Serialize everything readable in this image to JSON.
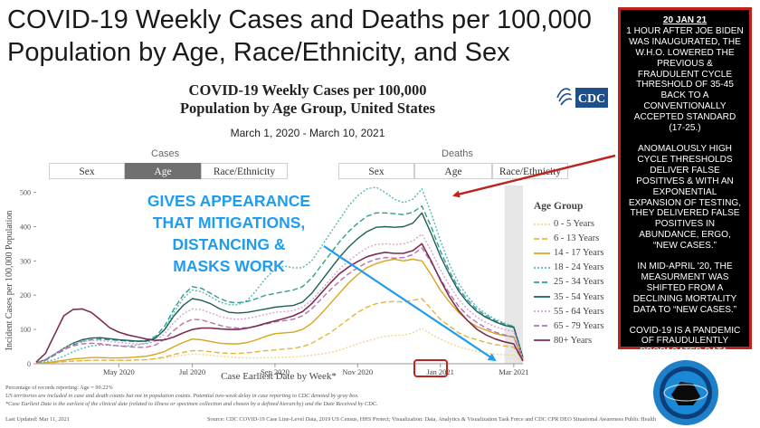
{
  "header": {
    "title_line1": "COVID-19 Weekly Cases and Deaths per 100,000",
    "title_line2": "Population by Age, Race/Ethnicity, and Sex"
  },
  "chart_header": {
    "title_line1": "COVID-19 Weekly Cases per 100,000",
    "title_line2": "Population by Age Group, United States",
    "date_range": "March 1, 2020 - March 10, 2021",
    "logo_text": "CDC"
  },
  "tabs": {
    "cases_label": "Cases",
    "deaths_label": "Deaths",
    "cases": [
      "Sex",
      "Age",
      "Race/Ethnicity"
    ],
    "deaths": [
      "Sex",
      "Age",
      "Race/Ethnicity"
    ],
    "active": "Age"
  },
  "annotation": {
    "line1": "GIVES APPEARANCE",
    "line2": "THAT MITIGATIONS,",
    "line3": "DISTANCING &",
    "line4": "MASKS WORK"
  },
  "side_panel": {
    "date": "20 JAN 21",
    "para1": "1 HOUR AFTER JOE BIDEN WAS INAUGURATED, THE W.H.O. LOWERED THE PREVIOUS & FRAUDULENT CYCLE THRESHOLD OF 35-45 BACK TO A CONVENTIONALLY ACCEPTED STANDARD (17-25.)",
    "para2": "ANOMALOUSLY HIGH CYCLE THRESHOLDS DELIVER FALSE POSITIVES & WITH AN EXPONENTIAL EXPANSION OF TESTING, THEY DELIVERED FALSE POSITIVES IN ABUNDANCE, ERGO, “NEW CASES.”",
    "para3": "IN MID-APRIL '20, THE MEASURMENT WAS SHIFTED FROM A DECLINING MORTALITY DATA TO “NEW CASES.”",
    "para4": "COVID-19 IS A PANDEMIC OF FRAUDULENTLY PROPAGATED DATA."
  },
  "footnotes": {
    "line1": "Percentage of records reporting: Age = 99.22%",
    "line2": "US territories are included in case and death counts but not in population counts. Potential two-week delay in case reporting to CDC denoted by gray box.",
    "line3": "*Case Earliest Date is the earliest of the clinical date (related to illness or specimen collection and chosen by a defined hierarchy) and the Date Received by CDC.",
    "updated": "Last Updated: Mar 11, 2021",
    "source": "Source: CDC COVID-19 Case Line-Level Data, 2019 US Census, HHS Protect; Visualization: Data, Analytics & Visualization Task Force and CDC CPR DEO Situational Awareness Public Health"
  },
  "colors": {
    "accent_red": "#c0221c",
    "annotation_blue": "#1e9cf0",
    "panel_bg": "#000000"
  },
  "chart_data": {
    "type": "line",
    "title": "COVID-19 Weekly Cases per 100,000 Population by Age Group, United States",
    "xlabel": "Case Earliest Date by Week*",
    "ylabel": "Incident Cases per 100,000 Population",
    "x_ticks": [
      "May 2020",
      "Jul 2020",
      "Sep 2020",
      "Nov 2020",
      "Jan 2021",
      "Mar 2021"
    ],
    "x_tick_weeks": [
      9,
      17,
      26,
      35,
      44,
      52
    ],
    "y_ticks": [
      0,
      100,
      200,
      300,
      400,
      500
    ],
    "ylim": [
      0,
      520
    ],
    "x": [
      0,
      1,
      2,
      3,
      4,
      5,
      6,
      7,
      8,
      9,
      10,
      11,
      12,
      13,
      14,
      15,
      16,
      17,
      18,
      19,
      20,
      21,
      22,
      23,
      24,
      25,
      26,
      27,
      28,
      29,
      30,
      31,
      32,
      33,
      34,
      35,
      36,
      37,
      38,
      39,
      40,
      41,
      42,
      43,
      44,
      45,
      46,
      47,
      48,
      49,
      50,
      51,
      52,
      53
    ],
    "shaded_region_weeks": [
      51,
      53
    ],
    "legend_title": "Age Group",
    "legend_position": "right",
    "series": [
      {
        "name": "0 - 5 Years",
        "color": "#f1d589",
        "dash": "2,2",
        "values": [
          1,
          2,
          4,
          6,
          8,
          9,
          10,
          10,
          10,
          10,
          10,
          11,
          12,
          14,
          17,
          21,
          25,
          28,
          27,
          25,
          22,
          20,
          18,
          17,
          17,
          18,
          18,
          19,
          20,
          22,
          25,
          28,
          33,
          40,
          48,
          58,
          66,
          74,
          80,
          83,
          84,
          90,
          104,
          86,
          72,
          60,
          50,
          42,
          36,
          32,
          28,
          26,
          25,
          5
        ]
      },
      {
        "name": "6 - 13 Years",
        "color": "#e3b53a",
        "dash": "6,3",
        "values": [
          1,
          2,
          4,
          6,
          8,
          9,
          10,
          10,
          10,
          10,
          10,
          11,
          12,
          15,
          20,
          27,
          33,
          38,
          38,
          35,
          32,
          30,
          30,
          32,
          35,
          38,
          40,
          43,
          45,
          50,
          60,
          75,
          90,
          110,
          130,
          150,
          165,
          175,
          180,
          182,
          180,
          185,
          190,
          160,
          130,
          110,
          90,
          78,
          70,
          62,
          56,
          52,
          48,
          10
        ]
      },
      {
        "name": "14 - 17 Years",
        "color": "#d8a51c",
        "dash": "",
        "values": [
          1,
          3,
          6,
          10,
          14,
          16,
          18,
          18,
          17,
          17,
          18,
          20,
          22,
          28,
          36,
          50,
          62,
          72,
          70,
          65,
          60,
          58,
          58,
          62,
          70,
          80,
          88,
          90,
          92,
          100,
          118,
          145,
          175,
          205,
          235,
          260,
          280,
          292,
          300,
          305,
          300,
          305,
          300,
          260,
          215,
          180,
          150,
          125,
          108,
          98,
          88,
          82,
          78,
          12
        ]
      },
      {
        "name": "18 - 24 Years",
        "color": "#52b9b5",
        "dash": "2,2",
        "values": [
          2,
          6,
          12,
          22,
          35,
          45,
          52,
          55,
          54,
          52,
          52,
          55,
          60,
          75,
          100,
          150,
          190,
          215,
          210,
          195,
          180,
          172,
          172,
          185,
          215,
          250,
          275,
          285,
          280,
          280,
          300,
          340,
          380,
          420,
          460,
          490,
          510,
          515,
          500,
          480,
          470,
          480,
          510,
          440,
          360,
          290,
          235,
          195,
          165,
          145,
          130,
          118,
          110,
          20
        ]
      },
      {
        "name": "25 - 34 Years",
        "color": "#2f9c96",
        "dash": "6,3",
        "values": [
          3,
          10,
          25,
          40,
          55,
          65,
          70,
          72,
          70,
          68,
          66,
          65,
          68,
          80,
          110,
          160,
          200,
          225,
          220,
          205,
          190,
          180,
          178,
          182,
          190,
          200,
          205,
          210,
          215,
          225,
          250,
          285,
          320,
          355,
          385,
          410,
          430,
          440,
          440,
          438,
          435,
          442,
          460,
          400,
          330,
          270,
          220,
          185,
          158,
          140,
          126,
          116,
          108,
          18
        ]
      },
      {
        "name": "35 - 54 Years",
        "color": "#1c5f57",
        "dash": "",
        "values": [
          3,
          12,
          28,
          45,
          60,
          70,
          75,
          76,
          73,
          70,
          68,
          66,
          66,
          75,
          100,
          140,
          170,
          190,
          185,
          175,
          160,
          150,
          148,
          150,
          155,
          160,
          165,
          168,
          170,
          180,
          205,
          240,
          275,
          310,
          340,
          365,
          385,
          398,
          400,
          398,
          400,
          410,
          440,
          380,
          315,
          260,
          212,
          178,
          152,
          135,
          122,
          112,
          106,
          18
        ]
      },
      {
        "name": "55 - 64 Years",
        "color": "#d6a3cf",
        "dash": "2,2",
        "values": [
          3,
          12,
          28,
          45,
          58,
          65,
          68,
          68,
          65,
          62,
          60,
          58,
          58,
          66,
          88,
          120,
          145,
          160,
          158,
          148,
          138,
          132,
          130,
          132,
          138,
          144,
          150,
          152,
          155,
          165,
          185,
          215,
          245,
          275,
          300,
          320,
          338,
          348,
          350,
          348,
          350,
          358,
          378,
          330,
          275,
          228,
          188,
          158,
          136,
          120,
          108,
          100,
          94,
          16
        ]
      },
      {
        "name": "65 - 79 Years",
        "color": "#b871ab",
        "dash": "6,3",
        "values": [
          3,
          12,
          28,
          42,
          52,
          58,
          60,
          58,
          55,
          52,
          50,
          48,
          48,
          55,
          72,
          98,
          118,
          130,
          128,
          120,
          112,
          106,
          104,
          105,
          110,
          116,
          122,
          126,
          130,
          140,
          160,
          188,
          215,
          240,
          262,
          280,
          295,
          305,
          310,
          308,
          310,
          318,
          338,
          296,
          248,
          205,
          168,
          140,
          120,
          104,
          92,
          84,
          78,
          14
        ]
      },
      {
        "name": "80+ Years",
        "color": "#7d2d55",
        "dash": "",
        "values": [
          5,
          30,
          85,
          140,
          158,
          160,
          150,
          128,
          105,
          92,
          84,
          78,
          72,
          68,
          70,
          78,
          90,
          100,
          104,
          104,
          102,
          100,
          100,
          104,
          110,
          118,
          125,
          132,
          140,
          152,
          175,
          205,
          235,
          262,
          282,
          298,
          312,
          320,
          325,
          322,
          322,
          330,
          350,
          300,
          245,
          195,
          155,
          125,
          100,
          84,
          72,
          64,
          58,
          8
        ]
      }
    ]
  }
}
